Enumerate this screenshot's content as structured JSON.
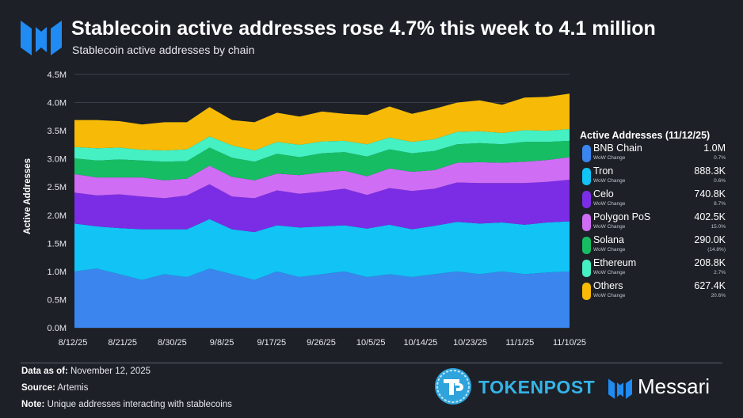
{
  "header": {
    "title": "Stablecoin active addresses rose 4.7% this week to 4.1 million",
    "subtitle": "Stablecoin active addresses by chain"
  },
  "legend": {
    "title": "Active Addresses (11/12/25)",
    "change_label": "WoW Change",
    "items": [
      {
        "name": "BNB Chain",
        "value": "1.0M",
        "change": "0.7%",
        "color": "#3a86ee"
      },
      {
        "name": "Tron",
        "value": "888.3K",
        "change": "0.6%",
        "color": "#12c3f6"
      },
      {
        "name": "Celo",
        "value": "740.8K",
        "change": "8.7%",
        "color": "#7b2de6"
      },
      {
        "name": "Polygon PoS",
        "value": "402.5K",
        "change": "15.0%",
        "color": "#cf6df5"
      },
      {
        "name": "Solana",
        "value": "290.0K",
        "change": "(14.8%)",
        "color": "#17bd63"
      },
      {
        "name": "Ethereum",
        "value": "208.8K",
        "change": "2.7%",
        "color": "#45f0c2"
      },
      {
        "name": "Others",
        "value": "627.4K",
        "change": "20.6%",
        "color": "#f7bb07"
      }
    ]
  },
  "footer": {
    "data_as_of_label": "Data as of:",
    "data_as_of": "November 12, 2025",
    "source_label": "Source:",
    "source": "Artemis",
    "note_label": "Note:",
    "note": "Unique addresses interacting with stablecoins"
  },
  "brands": {
    "tokenpost": "TOKENPOST",
    "messari": "Messari"
  },
  "chart_data": {
    "type": "area",
    "stacked": true,
    "ylabel": "Active Addresses",
    "xlabel": "",
    "ylim": [
      0,
      4.5
    ],
    "yticks": [
      "0.0M",
      "0.5M",
      "1.0M",
      "1.5M",
      "2.0M",
      "2.5M",
      "3.0M",
      "3.5M",
      "4.0M",
      "4.5M"
    ],
    "x_tick_labels": [
      "8/12/25",
      "8/21/25",
      "8/30/25",
      "9/8/25",
      "9/17/25",
      "9/26/25",
      "10/5/25",
      "10/14/25",
      "10/23/25",
      "11/1/25",
      "11/10/25"
    ],
    "x_start": "8/12/25",
    "x_end": "11/12/25",
    "grid": true,
    "legend_position": "right",
    "series": [
      {
        "name": "BNB Chain",
        "values": [
          1.0,
          1.05,
          0.95,
          0.85,
          0.95,
          0.9,
          1.05,
          0.95,
          0.85,
          1.0,
          0.9,
          0.95,
          1.0,
          0.9,
          0.95,
          0.9,
          0.95,
          1.0,
          0.95,
          1.0,
          0.95,
          0.98,
          1.0
        ]
      },
      {
        "name": "Tron",
        "values": [
          0.85,
          0.75,
          0.82,
          0.9,
          0.8,
          0.85,
          0.88,
          0.8,
          0.85,
          0.82,
          0.88,
          0.85,
          0.82,
          0.86,
          0.88,
          0.85,
          0.86,
          0.88,
          0.9,
          0.87,
          0.88,
          0.89,
          0.89
        ]
      },
      {
        "name": "Celo",
        "values": [
          0.55,
          0.55,
          0.6,
          0.58,
          0.55,
          0.6,
          0.62,
          0.58,
          0.6,
          0.62,
          0.6,
          0.62,
          0.65,
          0.6,
          0.65,
          0.68,
          0.66,
          0.7,
          0.72,
          0.7,
          0.74,
          0.72,
          0.74
        ]
      },
      {
        "name": "Polygon PoS",
        "values": [
          0.33,
          0.32,
          0.3,
          0.34,
          0.32,
          0.3,
          0.33,
          0.35,
          0.32,
          0.3,
          0.33,
          0.34,
          0.32,
          0.33,
          0.35,
          0.34,
          0.33,
          0.35,
          0.37,
          0.36,
          0.38,
          0.39,
          0.4
        ]
      },
      {
        "name": "Solana",
        "values": [
          0.28,
          0.3,
          0.32,
          0.3,
          0.33,
          0.31,
          0.32,
          0.34,
          0.33,
          0.35,
          0.32,
          0.34,
          0.33,
          0.35,
          0.34,
          0.33,
          0.34,
          0.33,
          0.34,
          0.33,
          0.35,
          0.32,
          0.29
        ]
      },
      {
        "name": "Ethereum",
        "values": [
          0.2,
          0.22,
          0.21,
          0.19,
          0.2,
          0.21,
          0.2,
          0.22,
          0.2,
          0.21,
          0.22,
          0.21,
          0.2,
          0.22,
          0.21,
          0.2,
          0.21,
          0.22,
          0.21,
          0.2,
          0.21,
          0.2,
          0.21
        ]
      },
      {
        "name": "Others",
        "values": [
          0.48,
          0.5,
          0.47,
          0.45,
          0.5,
          0.48,
          0.52,
          0.45,
          0.5,
          0.52,
          0.5,
          0.53,
          0.48,
          0.52,
          0.55,
          0.5,
          0.54,
          0.52,
          0.55,
          0.5,
          0.58,
          0.6,
          0.63
        ]
      }
    ]
  }
}
